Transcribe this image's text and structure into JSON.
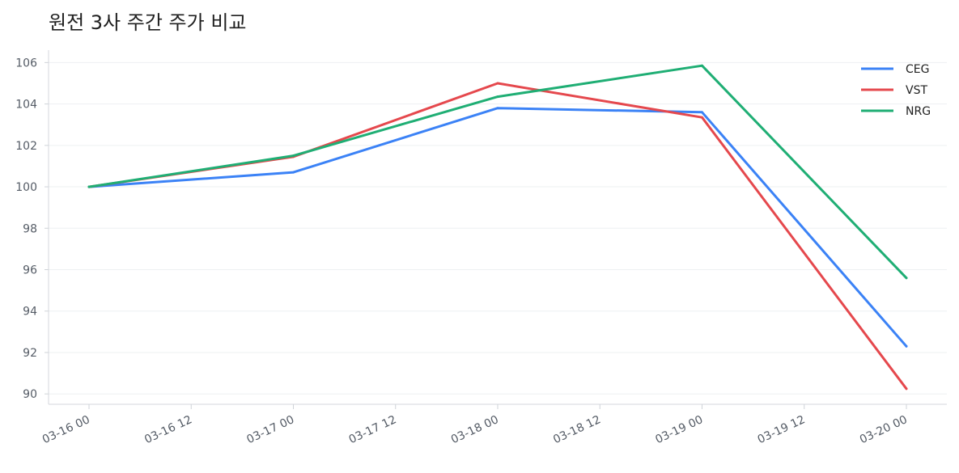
{
  "chart_data": {
    "type": "line",
    "title": "원전 3사 주간 주가 비교",
    "xlabel": "",
    "ylabel": "",
    "x": [
      "03-16 00",
      "03-17 00",
      "03-18 00",
      "03-19 00",
      "03-20 00"
    ],
    "x_ticks": [
      "03-16 00",
      "03-16 12",
      "03-17 00",
      "03-17 12",
      "03-18 00",
      "03-18 12",
      "03-19 00",
      "03-19 12",
      "03-20 00"
    ],
    "y_ticks": [
      90,
      92,
      94,
      96,
      98,
      100,
      102,
      104,
      106
    ],
    "ylim": [
      89.5,
      106.6
    ],
    "grid": "horizontal",
    "legend_position": "top-right",
    "series": [
      {
        "name": "CEG",
        "color": "#3b82f6",
        "values": [
          100.0,
          100.7,
          103.8,
          103.6,
          92.3
        ]
      },
      {
        "name": "VST",
        "color": "#e5484d",
        "values": [
          100.0,
          101.45,
          105.0,
          103.35,
          90.25
        ]
      },
      {
        "name": "NRG",
        "color": "#1fae74",
        "values": [
          100.0,
          101.5,
          104.35,
          105.85,
          95.6
        ]
      }
    ]
  }
}
